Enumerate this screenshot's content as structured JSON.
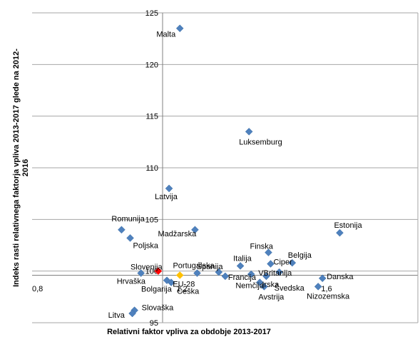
{
  "chart_data": {
    "type": "scatter",
    "xlabel": "Relativni faktor vpliva za obdobje 2013-2017",
    "ylabel": "Indeks rasti relativnega faktorja vpliva 2013-2017 glede na 2012-2016",
    "xlim": [
      0.8,
      1.8
    ],
    "ylim": [
      95,
      125
    ],
    "x_tick_labels": [
      "0,8",
      "1,2",
      "1,6"
    ],
    "y_ticks": [
      95,
      100,
      105,
      110,
      115,
      120,
      125
    ],
    "grid": "horizontal",
    "reference_line_y": 99.6,
    "colors": {
      "default": "#4f81bd",
      "highlight": "#ff0000",
      "average": "#ffc000",
      "grid": "#a6a6a6"
    },
    "points": [
      {
        "name": "Malta",
        "x": 1.08,
        "y": 123.5,
        "color": "default"
      },
      {
        "name": "Luksemburg",
        "x": 1.4,
        "y": 113.5,
        "color": "default"
      },
      {
        "name": "Latvija",
        "x": 1.03,
        "y": 108.0,
        "color": "default"
      },
      {
        "name": "Romunija",
        "x": 0.81,
        "y": 104.0,
        "color": "default"
      },
      {
        "name": "Madžarska",
        "x": 1.15,
        "y": 104.0,
        "color": "default"
      },
      {
        "name": "Estonija",
        "x": 1.82,
        "y": 103.7,
        "color": "default"
      },
      {
        "name": "Poljska",
        "x": 0.85,
        "y": 103.2,
        "color": "default"
      },
      {
        "name": "Finska",
        "x": 1.49,
        "y": 101.8,
        "color": "default"
      },
      {
        "name": "Belgija",
        "x": 1.6,
        "y": 100.8,
        "color": "default"
      },
      {
        "name": "Italija",
        "x": 1.36,
        "y": 100.5,
        "color": "default"
      },
      {
        "name": "Ciper",
        "x": 1.5,
        "y": 100.7,
        "color": "default"
      },
      {
        "name": "Slovenija",
        "x": 0.98,
        "y": 100.0,
        "color": "highlight"
      },
      {
        "name": "Hrvaška",
        "x": 0.9,
        "y": 99.8,
        "color": "default"
      },
      {
        "name": "Portugalska",
        "x": 1.16,
        "y": 99.8,
        "color": "default"
      },
      {
        "name": "Španija",
        "x": 1.26,
        "y": 99.9,
        "color": "default"
      },
      {
        "name": "Francija",
        "x": 1.29,
        "y": 99.5,
        "color": "default"
      },
      {
        "name": "VBritanija",
        "x": 1.41,
        "y": 99.7,
        "color": "default"
      },
      {
        "name": "Irska",
        "x": 1.48,
        "y": 99.5,
        "color": "default"
      },
      {
        "name": "Švedska",
        "x": 1.54,
        "y": 99.9,
        "color": "default"
      },
      {
        "name": "EU-28",
        "x": 1.08,
        "y": 99.6,
        "color": "average"
      },
      {
        "name": "Bolgarija",
        "x": 1.02,
        "y": 99.1,
        "color": "default"
      },
      {
        "name": "Češka",
        "x": 1.04,
        "y": 98.9,
        "color": "default"
      },
      {
        "name": "Nemčija",
        "x": 1.45,
        "y": 98.9,
        "color": "default"
      },
      {
        "name": "Avstrija",
        "x": 1.47,
        "y": 98.5,
        "color": "default"
      },
      {
        "name": "Danska",
        "x": 1.74,
        "y": 99.3,
        "color": "default"
      },
      {
        "name": "Nizozemska",
        "x": 1.72,
        "y": 98.5,
        "color": "default"
      },
      {
        "name": "Slovaška",
        "x": 0.87,
        "y": 96.2,
        "color": "default"
      },
      {
        "name": "Litva",
        "x": 0.86,
        "y": 95.9,
        "color": "default"
      }
    ]
  }
}
